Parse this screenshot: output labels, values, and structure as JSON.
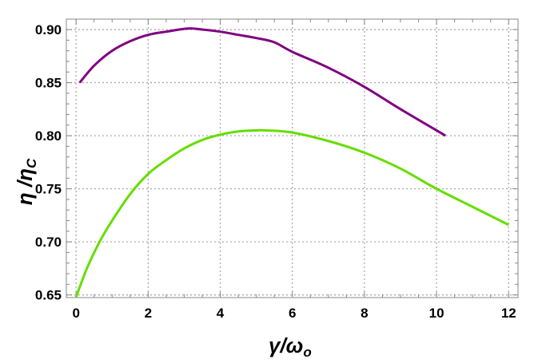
{
  "chart_data": {
    "type": "line",
    "title": "",
    "xlabel": "γ/ω",
    "xlabel_sub": "o",
    "ylabel": "η /η",
    "ylabel_sub": "C",
    "xlim": [
      -0.27,
      12.26
    ],
    "ylim": [
      0.6475,
      0.9098
    ],
    "grid": true,
    "grid_style": "dotted",
    "xticks": [
      0,
      2,
      4,
      6,
      8,
      10,
      12
    ],
    "xtick_labels": [
      "0",
      "2",
      "4",
      "6",
      "8",
      "10",
      "12"
    ],
    "yticks": [
      0.65,
      0.7,
      0.75,
      0.8,
      0.85,
      0.9
    ],
    "ytick_labels": [
      "0.65",
      "0.70",
      "0.75",
      "0.80",
      "0.85",
      "0.90"
    ],
    "series": [
      {
        "color": "#800080",
        "x": [
          0.1,
          0.5,
          1,
          1.5,
          2,
          2.5,
          3.1,
          3.5,
          4,
          4.5,
          5,
          5.5,
          6,
          7,
          8,
          9,
          10.25
        ],
        "y": [
          0.85,
          0.866,
          0.88,
          0.889,
          0.895,
          0.898,
          0.901,
          0.9,
          0.898,
          0.895,
          0.892,
          0.888,
          0.879,
          0.864,
          0.846,
          0.825,
          0.8
        ]
      },
      {
        "color": "#66DD00",
        "x": [
          0.0,
          0.3,
          0.65,
          1,
          1.5,
          2,
          2.5,
          3,
          3.5,
          4,
          4.5,
          5,
          5.3,
          6,
          7,
          8,
          9,
          10,
          11,
          12
        ],
        "y": [
          0.648,
          0.675,
          0.7,
          0.72,
          0.745,
          0.764,
          0.777,
          0.788,
          0.796,
          0.801,
          0.804,
          0.805,
          0.805,
          0.803,
          0.795,
          0.784,
          0.769,
          0.75,
          0.733,
          0.716
        ]
      }
    ]
  }
}
